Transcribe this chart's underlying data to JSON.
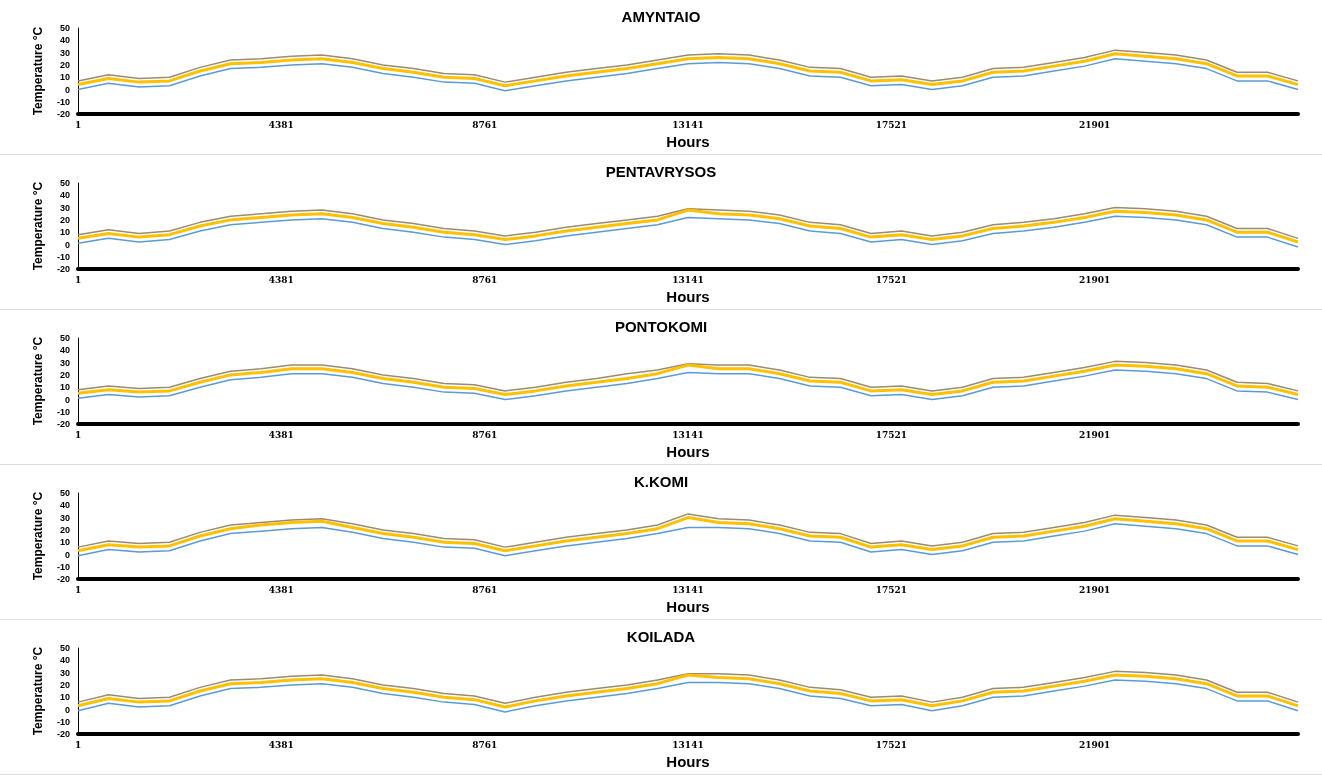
{
  "chart_data": [
    {
      "type": "line",
      "title": "AMYNTAIO",
      "xlabel": "Hours",
      "ylabel": "Temperature °C",
      "xlim": [
        1,
        26281
      ],
      "xticks": [
        1,
        4381,
        8761,
        13141,
        17521,
        21901
      ],
      "ylim": [
        -20,
        50
      ],
      "yticks": [
        -20,
        -10,
        0,
        10,
        20,
        30,
        40,
        50
      ],
      "grid": false,
      "marker": "none",
      "line_style": "solid",
      "x": [
        1,
        658,
        1315,
        1972,
        2629,
        3286,
        3943,
        4600,
        5257,
        5914,
        6571,
        7228,
        7885,
        8542,
        9199,
        9856,
        10513,
        11170,
        11827,
        12484,
        13141,
        13798,
        14455,
        15112,
        15769,
        16426,
        17083,
        17740,
        18397,
        19054,
        19711,
        20368,
        21025,
        21682,
        22339,
        22996,
        23653,
        24310,
        24967,
        25624,
        26281
      ],
      "series": [
        {
          "color": "#5b9bd5",
          "values": [
            0,
            5,
            2,
            3,
            11,
            17,
            18,
            20,
            21,
            18,
            13,
            10,
            6,
            5,
            -1,
            3,
            7,
            10,
            13,
            17,
            21,
            22,
            21,
            17,
            11,
            10,
            3,
            4,
            0,
            3,
            10,
            11,
            15,
            19,
            25,
            23,
            21,
            17,
            7,
            7,
            0
          ]
        },
        {
          "color": "#9e8a6e",
          "values": [
            7,
            12,
            9,
            10,
            18,
            24,
            25,
            27,
            28,
            25,
            20,
            17,
            13,
            12,
            6,
            10,
            14,
            17,
            20,
            24,
            28,
            29,
            28,
            24,
            18,
            17,
            10,
            11,
            7,
            10,
            17,
            18,
            22,
            26,
            32,
            30,
            28,
            24,
            14,
            14,
            7
          ]
        },
        {
          "color": "#ffc000",
          "values": [
            4,
            9,
            6,
            7,
            15,
            21,
            22,
            24,
            25,
            22,
            17,
            14,
            10,
            9,
            3,
            7,
            11,
            14,
            17,
            21,
            25,
            26,
            25,
            21,
            15,
            14,
            7,
            8,
            4,
            7,
            14,
            15,
            19,
            23,
            29,
            27,
            25,
            21,
            11,
            11,
            4
          ]
        }
      ]
    },
    {
      "type": "line",
      "title": "PENTAVRYSOS",
      "xlabel": "Hours",
      "ylabel": "Temperature °C",
      "xlim": [
        1,
        26281
      ],
      "xticks": [
        1,
        4381,
        8761,
        13141,
        17521,
        21901
      ],
      "ylim": [
        -20,
        50
      ],
      "yticks": [
        -20,
        -10,
        0,
        10,
        20,
        30,
        40,
        50
      ],
      "grid": false,
      "marker": "none",
      "line_style": "solid",
      "x": [
        1,
        658,
        1315,
        1972,
        2629,
        3286,
        3943,
        4600,
        5257,
        5914,
        6571,
        7228,
        7885,
        8542,
        9199,
        9856,
        10513,
        11170,
        11827,
        12484,
        13141,
        13798,
        14455,
        15112,
        15769,
        16426,
        17083,
        17740,
        18397,
        19054,
        19711,
        20368,
        21025,
        21682,
        22339,
        22996,
        23653,
        24310,
        24967,
        25624,
        26281
      ],
      "series": [
        {
          "color": "#5b9bd5",
          "values": [
            1,
            5,
            2,
            4,
            11,
            16,
            18,
            20,
            21,
            18,
            13,
            10,
            6,
            4,
            0,
            3,
            7,
            10,
            13,
            16,
            22,
            21,
            20,
            17,
            11,
            9,
            2,
            4,
            0,
            3,
            9,
            11,
            14,
            18,
            23,
            22,
            20,
            16,
            6,
            6,
            -2
          ]
        },
        {
          "color": "#9e8a6e",
          "values": [
            8,
            12,
            9,
            11,
            18,
            23,
            25,
            27,
            28,
            25,
            20,
            17,
            13,
            11,
            7,
            10,
            14,
            17,
            20,
            23,
            29,
            28,
            27,
            24,
            18,
            16,
            9,
            11,
            7,
            10,
            16,
            18,
            21,
            25,
            30,
            29,
            27,
            23,
            13,
            13,
            5
          ]
        },
        {
          "color": "#ffc000",
          "values": [
            5,
            9,
            6,
            8,
            15,
            20,
            22,
            24,
            25,
            22,
            17,
            14,
            10,
            8,
            4,
            7,
            11,
            14,
            17,
            20,
            28,
            25,
            24,
            21,
            15,
            13,
            6,
            8,
            4,
            7,
            13,
            15,
            18,
            22,
            27,
            26,
            24,
            20,
            10,
            10,
            2
          ]
        }
      ]
    },
    {
      "type": "line",
      "title": "PONTOKOMI",
      "xlabel": "Hours",
      "ylabel": "Temperature °C",
      "xlim": [
        1,
        26281
      ],
      "xticks": [
        1,
        4381,
        8761,
        13141,
        17521,
        21901
      ],
      "ylim": [
        -20,
        50
      ],
      "yticks": [
        -20,
        -10,
        0,
        10,
        20,
        30,
        40,
        50
      ],
      "grid": false,
      "marker": "none",
      "line_style": "solid",
      "x": [
        1,
        658,
        1315,
        1972,
        2629,
        3286,
        3943,
        4600,
        5257,
        5914,
        6571,
        7228,
        7885,
        8542,
        9199,
        9856,
        10513,
        11170,
        11827,
        12484,
        13141,
        13798,
        14455,
        15112,
        15769,
        16426,
        17083,
        17740,
        18397,
        19054,
        19711,
        20368,
        21025,
        21682,
        22339,
        22996,
        23653,
        24310,
        24967,
        25624,
        26281
      ],
      "series": [
        {
          "color": "#5b9bd5",
          "values": [
            1,
            4,
            2,
            3,
            10,
            16,
            18,
            21,
            21,
            18,
            13,
            10,
            6,
            5,
            0,
            3,
            7,
            10,
            13,
            17,
            22,
            21,
            21,
            17,
            11,
            10,
            3,
            4,
            0,
            3,
            10,
            11,
            15,
            19,
            24,
            23,
            21,
            17,
            7,
            6,
            0
          ]
        },
        {
          "color": "#9e8a6e",
          "values": [
            8,
            11,
            9,
            10,
            17,
            23,
            25,
            28,
            28,
            25,
            20,
            17,
            13,
            12,
            7,
            10,
            14,
            17,
            21,
            24,
            29,
            28,
            28,
            24,
            18,
            17,
            10,
            11,
            7,
            10,
            17,
            18,
            22,
            26,
            31,
            30,
            28,
            24,
            14,
            13,
            7
          ]
        },
        {
          "color": "#ffc000",
          "values": [
            5,
            8,
            6,
            7,
            14,
            20,
            22,
            25,
            25,
            22,
            17,
            14,
            10,
            9,
            4,
            7,
            11,
            14,
            17,
            21,
            28,
            25,
            25,
            21,
            15,
            14,
            7,
            8,
            4,
            7,
            14,
            15,
            19,
            23,
            28,
            27,
            25,
            21,
            11,
            10,
            4
          ]
        }
      ]
    },
    {
      "type": "line",
      "title": "K.KOMI",
      "xlabel": "Hours",
      "ylabel": "Temperature °C",
      "xlim": [
        1,
        26281
      ],
      "xticks": [
        1,
        4381,
        8761,
        13141,
        17521,
        21901
      ],
      "ylim": [
        -20,
        50
      ],
      "yticks": [
        -20,
        -10,
        0,
        10,
        20,
        30,
        40,
        50
      ],
      "grid": false,
      "marker": "none",
      "line_style": "solid",
      "x": [
        1,
        658,
        1315,
        1972,
        2629,
        3286,
        3943,
        4600,
        5257,
        5914,
        6571,
        7228,
        7885,
        8542,
        9199,
        9856,
        10513,
        11170,
        11827,
        12484,
        13141,
        13798,
        14455,
        15112,
        15769,
        16426,
        17083,
        17740,
        18397,
        19054,
        19711,
        20368,
        21025,
        21682,
        22339,
        22996,
        23653,
        24310,
        24967,
        25624,
        26281
      ],
      "series": [
        {
          "color": "#5b9bd5",
          "values": [
            -1,
            4,
            2,
            3,
            11,
            17,
            19,
            21,
            22,
            18,
            13,
            10,
            6,
            5,
            -1,
            3,
            7,
            10,
            13,
            17,
            22,
            22,
            21,
            17,
            11,
            10,
            2,
            4,
            0,
            3,
            10,
            11,
            15,
            19,
            25,
            23,
            21,
            17,
            7,
            7,
            0
          ]
        },
        {
          "color": "#9e8a6e",
          "values": [
            6,
            11,
            9,
            10,
            18,
            24,
            26,
            28,
            29,
            25,
            20,
            17,
            13,
            12,
            6,
            10,
            14,
            17,
            20,
            24,
            33,
            29,
            28,
            24,
            18,
            17,
            9,
            11,
            7,
            10,
            17,
            18,
            22,
            26,
            32,
            30,
            28,
            24,
            14,
            14,
            7
          ]
        },
        {
          "color": "#ffc000",
          "values": [
            3,
            8,
            6,
            7,
            15,
            21,
            24,
            26,
            27,
            22,
            17,
            14,
            10,
            9,
            3,
            7,
            11,
            14,
            17,
            21,
            30,
            26,
            25,
            21,
            15,
            14,
            6,
            8,
            4,
            7,
            14,
            15,
            19,
            23,
            29,
            27,
            25,
            21,
            11,
            11,
            4
          ]
        }
      ]
    },
    {
      "type": "line",
      "title": "KOILADA",
      "xlabel": "Hours",
      "ylabel": "Temperature °C",
      "xlim": [
        1,
        26281
      ],
      "xticks": [
        1,
        4381,
        8761,
        13141,
        17521,
        21901
      ],
      "ylim": [
        -20,
        50
      ],
      "yticks": [
        -20,
        -10,
        0,
        10,
        20,
        30,
        40,
        50
      ],
      "grid": false,
      "marker": "none",
      "line_style": "solid",
      "x": [
        1,
        658,
        1315,
        1972,
        2629,
        3286,
        3943,
        4600,
        5257,
        5914,
        6571,
        7228,
        7885,
        8542,
        9199,
        9856,
        10513,
        11170,
        11827,
        12484,
        13141,
        13798,
        14455,
        15112,
        15769,
        16426,
        17083,
        17740,
        18397,
        19054,
        19711,
        20368,
        21025,
        21682,
        22339,
        22996,
        23653,
        24310,
        24967,
        25624,
        26281
      ],
      "series": [
        {
          "color": "#5b9bd5",
          "values": [
            -1,
            5,
            2,
            3,
            11,
            17,
            18,
            20,
            21,
            18,
            13,
            10,
            6,
            4,
            -2,
            3,
            7,
            10,
            13,
            17,
            22,
            22,
            21,
            17,
            11,
            9,
            3,
            4,
            -1,
            3,
            10,
            11,
            15,
            19,
            24,
            23,
            21,
            17,
            7,
            7,
            -1
          ]
        },
        {
          "color": "#9e8a6e",
          "values": [
            6,
            12,
            9,
            10,
            18,
            24,
            25,
            27,
            28,
            25,
            20,
            17,
            13,
            11,
            5,
            10,
            14,
            17,
            20,
            24,
            29,
            29,
            28,
            24,
            18,
            16,
            10,
            11,
            6,
            10,
            17,
            18,
            22,
            26,
            31,
            30,
            28,
            24,
            14,
            14,
            6
          ]
        },
        {
          "color": "#ffc000",
          "values": [
            3,
            9,
            6,
            7,
            15,
            21,
            22,
            24,
            25,
            22,
            17,
            14,
            10,
            8,
            2,
            7,
            11,
            14,
            17,
            21,
            28,
            26,
            25,
            21,
            15,
            13,
            7,
            8,
            3,
            7,
            14,
            15,
            19,
            23,
            28,
            27,
            25,
            21,
            11,
            11,
            3
          ]
        }
      ]
    }
  ]
}
